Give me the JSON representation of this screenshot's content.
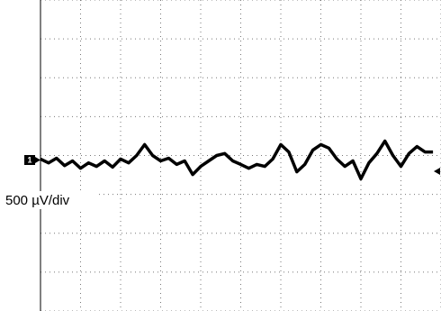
{
  "chart_data": {
    "type": "line",
    "channel_label": "1",
    "scale_label": "500 µV/div",
    "x": [
      0,
      0.2,
      0.4,
      0.6,
      0.8,
      1.0,
      1.2,
      1.4,
      1.6,
      1.8,
      2.0,
      2.2,
      2.4,
      2.6,
      2.8,
      3.0,
      3.2,
      3.4,
      3.6,
      3.8,
      4.0,
      4.2,
      4.4,
      4.6,
      4.8,
      5.0,
      5.2,
      5.4,
      5.6,
      5.8,
      6.0,
      6.2,
      6.4,
      6.6,
      6.8,
      7.0,
      7.2,
      7.4,
      7.6,
      7.8,
      8.0,
      8.2,
      8.4,
      8.6,
      8.8,
      9.0,
      9.2,
      9.4,
      9.6,
      9.8
    ],
    "series": [
      {
        "color": "#000000",
        "values": [
          -0.09,
          -0.19,
          -0.07,
          -0.26,
          -0.14,
          -0.33,
          -0.19,
          -0.28,
          -0.14,
          -0.3,
          -0.09,
          -0.19,
          0,
          0.28,
          0,
          -0.14,
          -0.07,
          -0.23,
          -0.14,
          -0.49,
          -0.28,
          -0.14,
          0,
          0.05,
          -0.14,
          -0.23,
          -0.33,
          -0.23,
          -0.28,
          -0.09,
          0.28,
          0.09,
          -0.42,
          -0.23,
          0.14,
          0.28,
          0.19,
          -0.09,
          -0.28,
          -0.14,
          -0.6,
          -0.19,
          0.05,
          0.37,
          0,
          -0.28,
          0.05,
          0.23,
          0.09,
          0.09
        ]
      }
    ],
    "xlim": [
      0,
      10
    ],
    "ylim": [
      -4,
      4
    ],
    "xticks": [
      0,
      1,
      2,
      3,
      4,
      5,
      6,
      7,
      8,
      9,
      10
    ],
    "yticks": [
      -4,
      -3,
      -2,
      -1,
      0,
      1,
      2,
      3,
      4
    ],
    "grid": true
  }
}
